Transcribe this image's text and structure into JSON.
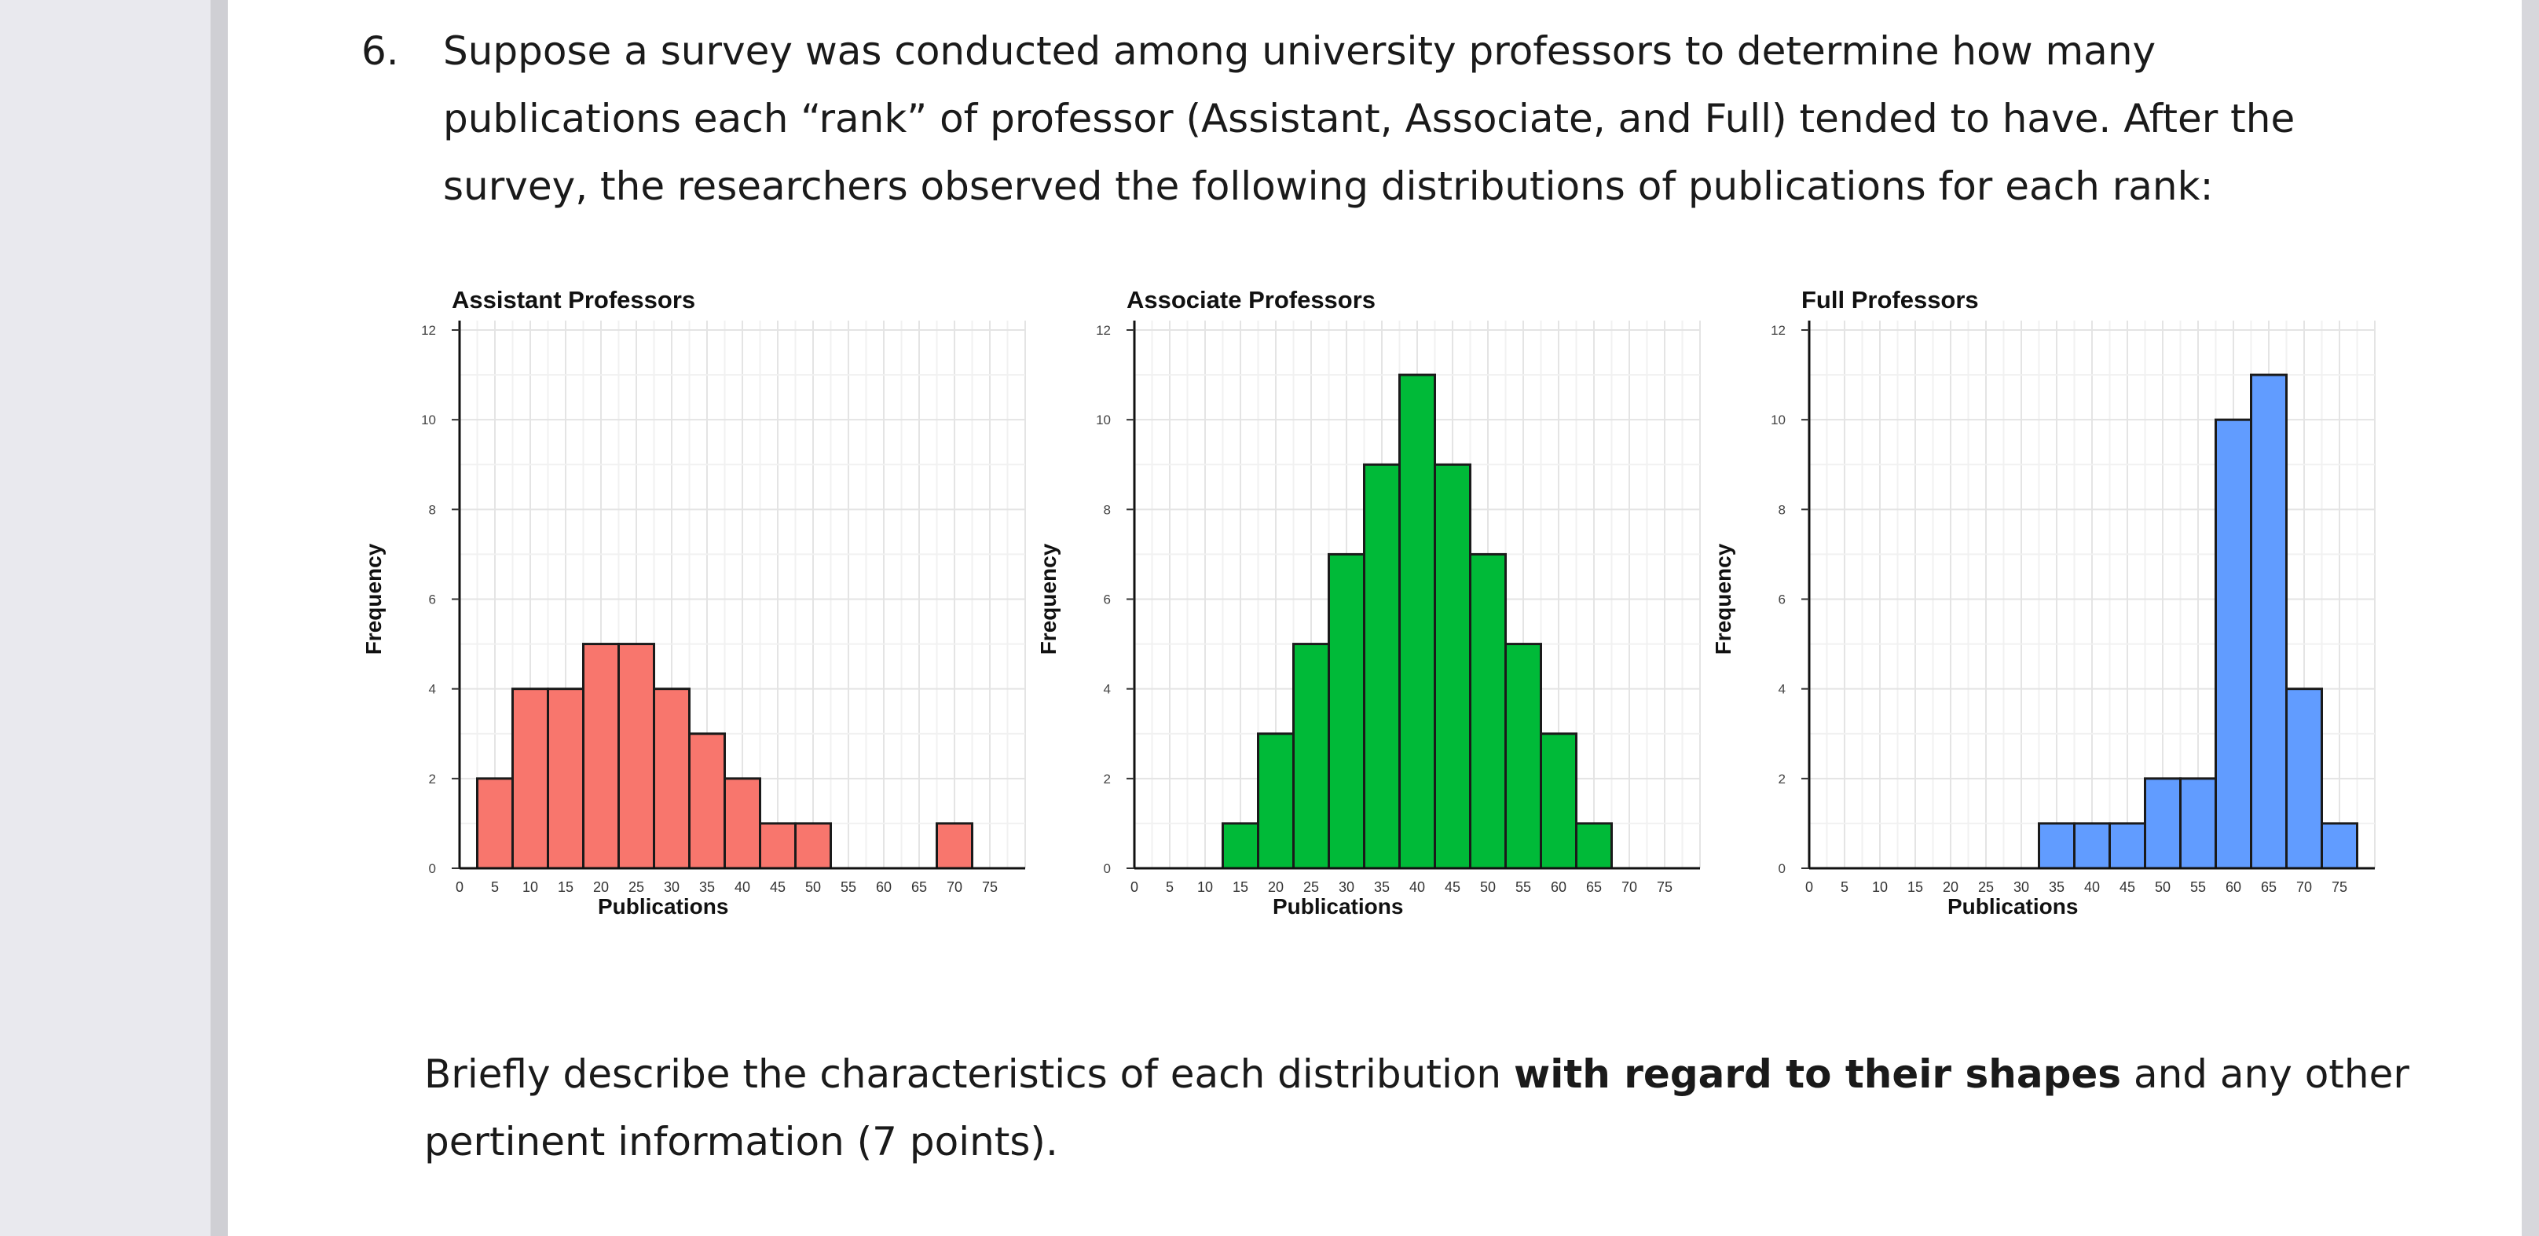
{
  "question": {
    "number": "6.",
    "lines": [
      "Suppose a survey was conducted among university professors to determine how many",
      "publications each “rank” of professor (Assistant, Associate, and Full) tended to have. After the",
      "survey, the researchers observed the following distributions of publications for each rank:"
    ]
  },
  "prompt": {
    "pre": "Briefly describe the characteristics of each distribution ",
    "bold": "with regard to their shapes",
    "post": " and any other",
    "line2": "pertinent information (7 points)."
  },
  "colors": {
    "assistant": "#f8766d",
    "associate": "#00ba38",
    "full": "#619cff"
  },
  "chart_data": [
    {
      "type": "bar",
      "title": "Assistant Professors",
      "xlabel": "Publications",
      "ylabel": "Frequency",
      "bin_width": 5,
      "xlim": [
        0,
        80
      ],
      "ylim": [
        0,
        12
      ],
      "y_ticks": [
        "0",
        "2",
        "4",
        "6",
        "8",
        "10",
        "12"
      ],
      "x_ticks": [
        "0",
        "5",
        "10",
        "15",
        "20",
        "25",
        "30",
        "35",
        "40",
        "45",
        "50",
        "55",
        "60",
        "65",
        "70",
        "75"
      ],
      "bins": [
        {
          "start": 2.5,
          "count": 2
        },
        {
          "start": 7.5,
          "count": 4
        },
        {
          "start": 12.5,
          "count": 4
        },
        {
          "start": 17.5,
          "count": 5
        },
        {
          "start": 22.5,
          "count": 5
        },
        {
          "start": 27.5,
          "count": 4
        },
        {
          "start": 32.5,
          "count": 3
        },
        {
          "start": 37.5,
          "count": 2
        },
        {
          "start": 42.5,
          "count": 1
        },
        {
          "start": 47.5,
          "count": 1
        },
        {
          "start": 67.5,
          "count": 1
        }
      ],
      "grid": true,
      "color": "#f8766d"
    },
    {
      "type": "bar",
      "title": "Associate Professors",
      "xlabel": "Publications",
      "ylabel": "Frequency",
      "bin_width": 5,
      "xlim": [
        0,
        80
      ],
      "ylim": [
        0,
        12
      ],
      "y_ticks": [
        "0",
        "2",
        "4",
        "6",
        "8",
        "10",
        "12"
      ],
      "x_ticks": [
        "0",
        "5",
        "10",
        "15",
        "20",
        "25",
        "30",
        "35",
        "40",
        "45",
        "50",
        "55",
        "60",
        "65",
        "70",
        "75"
      ],
      "bins": [
        {
          "start": 12.5,
          "count": 1
        },
        {
          "start": 17.5,
          "count": 3
        },
        {
          "start": 22.5,
          "count": 5
        },
        {
          "start": 27.5,
          "count": 7
        },
        {
          "start": 32.5,
          "count": 9
        },
        {
          "start": 37.5,
          "count": 11
        },
        {
          "start": 42.5,
          "count": 9
        },
        {
          "start": 47.5,
          "count": 7
        },
        {
          "start": 52.5,
          "count": 5
        },
        {
          "start": 57.5,
          "count": 3
        },
        {
          "start": 62.5,
          "count": 1
        }
      ],
      "grid": true,
      "color": "#00ba38"
    },
    {
      "type": "bar",
      "title": "Full Professors",
      "xlabel": "Publications",
      "ylabel": "Frequency",
      "bin_width": 5,
      "xlim": [
        0,
        80
      ],
      "ylim": [
        0,
        12
      ],
      "y_ticks": [
        "0",
        "2",
        "4",
        "6",
        "8",
        "10",
        "12"
      ],
      "x_ticks": [
        "0",
        "5",
        "10",
        "15",
        "20",
        "25",
        "30",
        "35",
        "40",
        "45",
        "50",
        "55",
        "60",
        "65",
        "70",
        "75"
      ],
      "bins": [
        {
          "start": 32.5,
          "count": 1
        },
        {
          "start": 37.5,
          "count": 1
        },
        {
          "start": 42.5,
          "count": 1
        },
        {
          "start": 47.5,
          "count": 2
        },
        {
          "start": 52.5,
          "count": 2
        },
        {
          "start": 57.5,
          "count": 10
        },
        {
          "start": 62.5,
          "count": 11
        },
        {
          "start": 67.5,
          "count": 4
        },
        {
          "start": 72.5,
          "count": 1
        }
      ],
      "grid": true,
      "color": "#619cff"
    }
  ]
}
